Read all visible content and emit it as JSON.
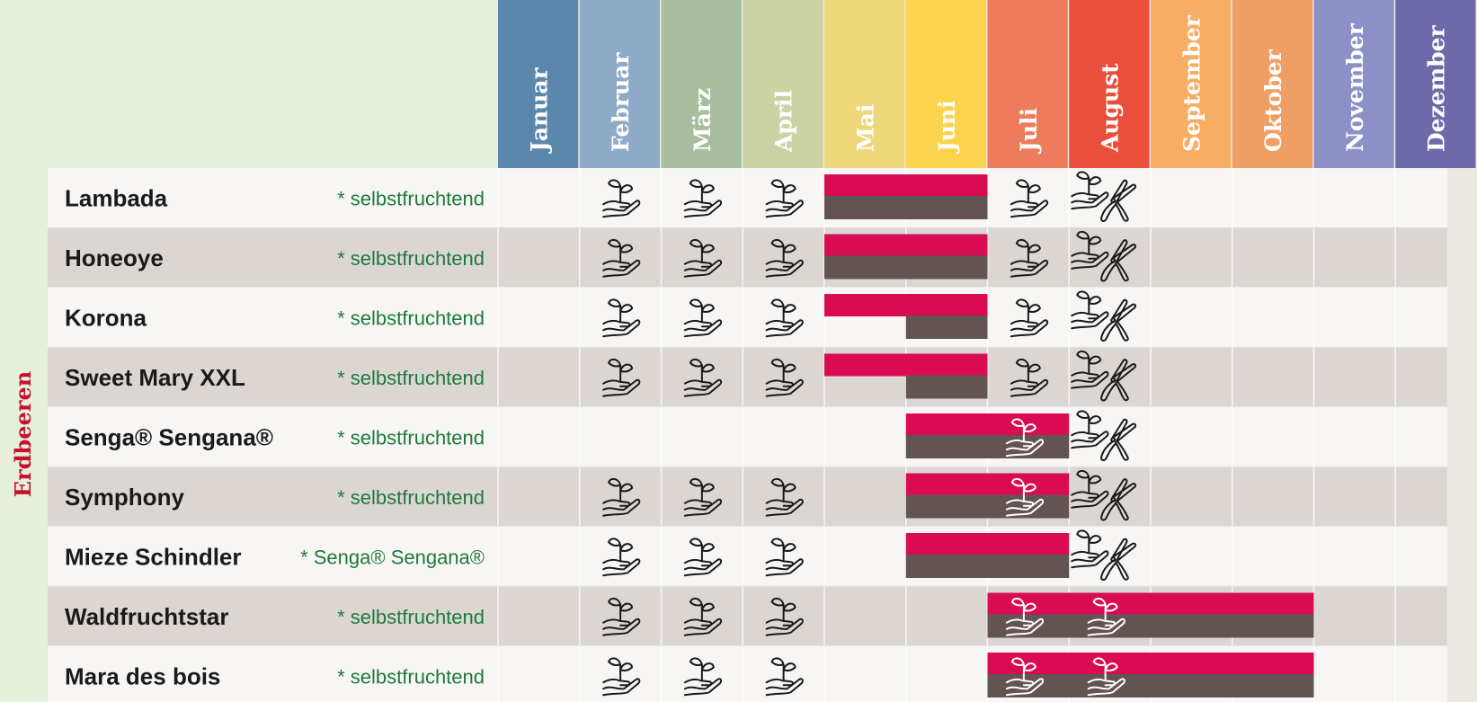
{
  "group_label": "Erdbeeren",
  "colors": {
    "page_bg": "#ece9e4",
    "header_bg": "#e6f0da",
    "row_light": "#f7f6f4",
    "row_dark": "#dcd6d3",
    "bar_top": "#d80b53",
    "bar_bottom": "#635352",
    "name_text": "#1a1a1a",
    "note_text": "#1d7a3c",
    "group_text": "#c8102e"
  },
  "months": [
    {
      "label": "Januar",
      "color": "#5b87ad"
    },
    {
      "label": "Februar",
      "color": "#8faac6"
    },
    {
      "label": "März",
      "color": "#a7bd9e"
    },
    {
      "label": "April",
      "color": "#cbd3a5"
    },
    {
      "label": "Mai",
      "color": "#eed77a"
    },
    {
      "label": "Juni",
      "color": "#fbd34c"
    },
    {
      "label": "Juli",
      "color": "#ee7b5c"
    },
    {
      "label": "August",
      "color": "#e94f3a"
    },
    {
      "label": "September",
      "color": "#f7ad63"
    },
    {
      "label": "Oktober",
      "color": "#ef9f64"
    },
    {
      "label": "November",
      "color": "#8c90c6"
    },
    {
      "label": "Dezember",
      "color": "#6e6aa9"
    }
  ],
  "icons": {
    "plant": "hand-with-sprout-icon",
    "cut": "pruning-shears-icon"
  },
  "varieties": [
    {
      "name": "Lambada",
      "note": "* selbstfruchtend",
      "top_bar": [
        5,
        6
      ],
      "bottom_bar": [
        5,
        6
      ],
      "plant_months": [
        2,
        3,
        4,
        7
      ],
      "plant_on_bar_months": [],
      "cut_months": [
        8
      ]
    },
    {
      "name": "Honeoye",
      "note": "* selbstfruchtend",
      "top_bar": [
        5,
        6
      ],
      "bottom_bar": [
        5,
        6
      ],
      "plant_months": [
        2,
        3,
        4,
        7
      ],
      "plant_on_bar_months": [],
      "cut_months": [
        8
      ]
    },
    {
      "name": "Korona",
      "note": "* selbstfruchtend",
      "top_bar": [
        5,
        6
      ],
      "bottom_bar": [
        6,
        6
      ],
      "plant_months": [
        2,
        3,
        4,
        7
      ],
      "plant_on_bar_months": [],
      "cut_months": [
        8
      ]
    },
    {
      "name": "Sweet Mary XXL",
      "note": "* selbstfruchtend",
      "top_bar": [
        5,
        6
      ],
      "bottom_bar": [
        6,
        6
      ],
      "plant_months": [
        2,
        3,
        4,
        7
      ],
      "plant_on_bar_months": [],
      "cut_months": [
        8
      ]
    },
    {
      "name": "Senga® Sengana®",
      "note": "* selbstfruchtend",
      "top_bar": [
        6,
        7
      ],
      "bottom_bar": [
        6,
        7
      ],
      "plant_months": [],
      "plant_on_bar_months": [
        7
      ],
      "cut_months": [
        8
      ]
    },
    {
      "name": "Symphony",
      "note": "* selbstfruchtend",
      "top_bar": [
        6,
        7
      ],
      "bottom_bar": [
        6,
        7
      ],
      "plant_months": [
        2,
        3,
        4
      ],
      "plant_on_bar_months": [
        7
      ],
      "cut_months": [
        8
      ]
    },
    {
      "name": "Mieze Schindler",
      "note": "* Senga® Sengana®",
      "top_bar": [
        6,
        7
      ],
      "bottom_bar": [
        6,
        7
      ],
      "plant_months": [
        2,
        3,
        4
      ],
      "plant_on_bar_months": [],
      "cut_months": [
        8
      ]
    },
    {
      "name": "Waldfruchtstar",
      "note": "* selbstfruchtend",
      "top_bar": [
        7,
        10
      ],
      "bottom_bar": [
        7,
        10
      ],
      "plant_months": [
        2,
        3,
        4
      ],
      "plant_on_bar_months": [
        7,
        8
      ],
      "cut_months": []
    },
    {
      "name": "Mara des bois",
      "note": "* selbstfruchtend",
      "top_bar": [
        7,
        10
      ],
      "bottom_bar": [
        7,
        10
      ],
      "plant_months": [
        2,
        3,
        4
      ],
      "plant_on_bar_months": [
        7,
        8
      ],
      "cut_months": []
    }
  ]
}
